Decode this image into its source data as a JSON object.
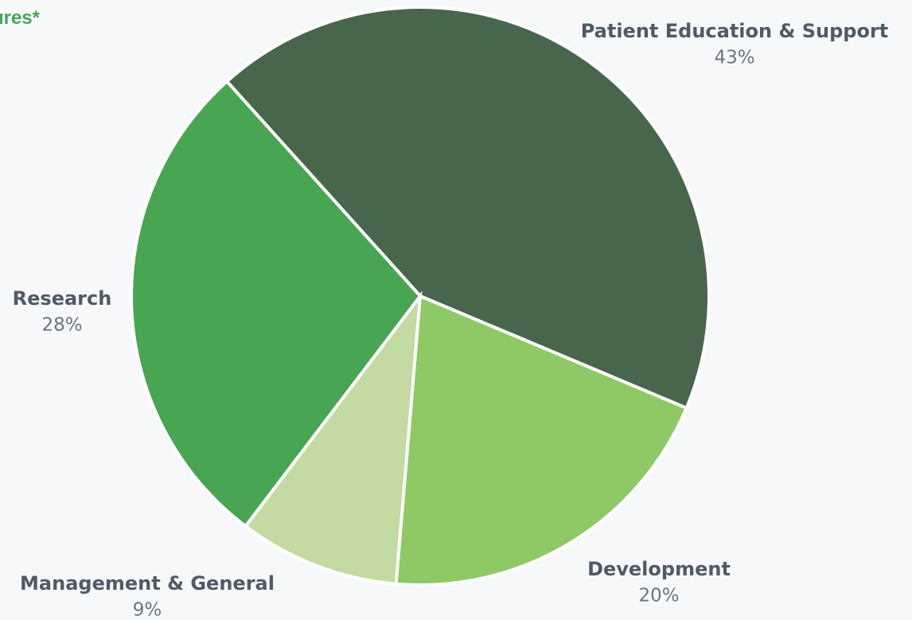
{
  "chart_data": {
    "type": "pie",
    "title": "ures*",
    "categories": [
      "Patient Education & Support",
      "Development",
      "Management & General",
      "Research"
    ],
    "values": [
      43,
      20,
      9,
      28
    ],
    "value_labels": [
      "43%",
      "20%",
      "9%",
      "28%"
    ],
    "colors": [
      "#48664c",
      "#8fc965",
      "#c3dba2",
      "#48a552"
    ]
  }
}
